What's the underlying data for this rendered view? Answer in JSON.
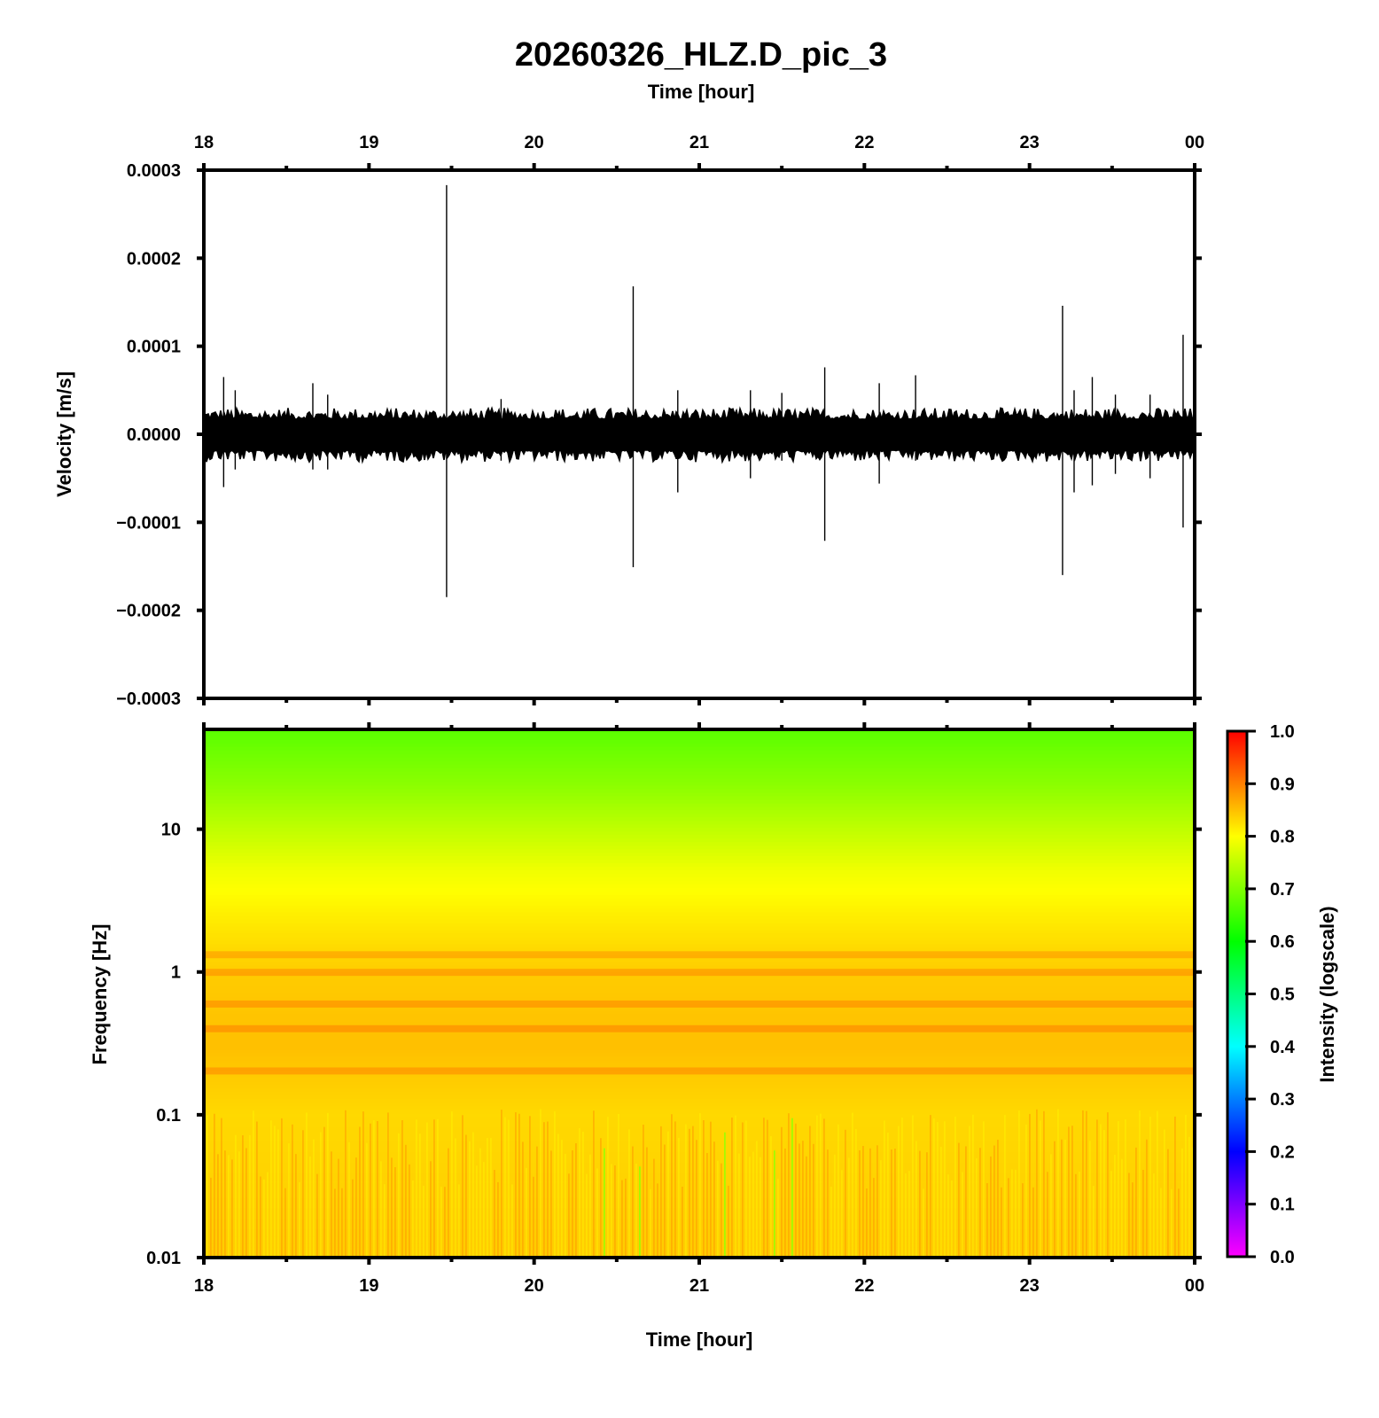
{
  "title": "20260326_HLZ.D_pic_3",
  "chart_data": [
    {
      "type": "line",
      "name": "seismogram",
      "xlabel": "Time [hour]",
      "ylabel": "Velocity [m/s]",
      "x_tick_labels": [
        "18",
        "19",
        "20",
        "21",
        "22",
        "23",
        "00"
      ],
      "y_tick_labels": [
        "0.0003",
        "0.0002",
        "0.0001",
        "0.0000",
        "−0.0001",
        "−0.0002",
        "−0.0003"
      ],
      "xlim": [
        18,
        24
      ],
      "ylim": [
        -0.0003,
        0.0003
      ],
      "noise_amplitude": 3e-05,
      "spikes": [
        {
          "x": 18.12,
          "pos": 6.5e-05,
          "neg": -6e-05
        },
        {
          "x": 18.19,
          "pos": 5e-05,
          "neg": -4e-05
        },
        {
          "x": 18.66,
          "pos": 5.8e-05,
          "neg": -4e-05
        },
        {
          "x": 18.75,
          "pos": 4.5e-05,
          "neg": -4e-05
        },
        {
          "x": 19.47,
          "pos": 0.000283,
          "neg": -0.000185
        },
        {
          "x": 19.8,
          "pos": 4e-05,
          "neg": -3e-05
        },
        {
          "x": 20.6,
          "pos": 0.000168,
          "neg": -0.000151
        },
        {
          "x": 20.87,
          "pos": 5e-05,
          "neg": -6.6e-05
        },
        {
          "x": 21.31,
          "pos": 5e-05,
          "neg": -5e-05
        },
        {
          "x": 21.5,
          "pos": 4.7e-05,
          "neg": -3e-05
        },
        {
          "x": 21.76,
          "pos": 7.6e-05,
          "neg": -0.000121
        },
        {
          "x": 22.09,
          "pos": 5.8e-05,
          "neg": -5.6e-05
        },
        {
          "x": 22.31,
          "pos": 6.7e-05,
          "neg": -3e-05
        },
        {
          "x": 23.2,
          "pos": 0.000146,
          "neg": -0.00016
        },
        {
          "x": 23.27,
          "pos": 5e-05,
          "neg": -6.6e-05
        },
        {
          "x": 23.38,
          "pos": 6.5e-05,
          "neg": -5.8e-05
        },
        {
          "x": 23.52,
          "pos": 4.5e-05,
          "neg": -4.5e-05
        },
        {
          "x": 23.73,
          "pos": 4.5e-05,
          "neg": -5e-05
        },
        {
          "x": 23.93,
          "pos": 0.000113,
          "neg": -0.000106
        }
      ],
      "grid": false
    },
    {
      "type": "heatmap",
      "name": "spectrogram",
      "xlabel": "Time [hour]",
      "ylabel": "Frequency [Hz]",
      "x_tick_labels": [
        "18",
        "19",
        "20",
        "21",
        "22",
        "23",
        "00"
      ],
      "y_tick_labels": [
        "10",
        "1",
        "0.1",
        "0.01"
      ],
      "y_tick_values": [
        10,
        1,
        0.1,
        0.01
      ],
      "y_scale": "log",
      "xlim": [
        18,
        24
      ],
      "ylim": [
        0.01,
        50
      ],
      "intensity_profile": [
        {
          "freq": 50,
          "intensity": 0.67
        },
        {
          "freq": 20,
          "intensity": 0.71
        },
        {
          "freq": 10,
          "intensity": 0.75
        },
        {
          "freq": 5,
          "intensity": 0.79
        },
        {
          "freq": 2,
          "intensity": 0.82
        },
        {
          "freq": 1,
          "intensity": 0.84
        },
        {
          "freq": 0.3,
          "intensity": 0.85
        },
        {
          "freq": 0.1,
          "intensity": 0.83
        },
        {
          "freq": 0.01,
          "intensity": 0.84
        }
      ],
      "highlight_bands_hz": [
        1.3,
        1.0,
        0.6,
        0.4,
        0.2
      ],
      "colorbar": {
        "label": "Intensity (logscale)",
        "tick_labels": [
          "1.0",
          "0.9",
          "0.8",
          "0.7",
          "0.6",
          "0.5",
          "0.4",
          "0.3",
          "0.2",
          "0.1",
          "0.0"
        ],
        "range": [
          0.0,
          1.0
        ],
        "colors": [
          "#ff00ff",
          "#0000ff",
          "#00ffff",
          "#00ff00",
          "#ffff00",
          "#ff0000"
        ]
      }
    }
  ]
}
